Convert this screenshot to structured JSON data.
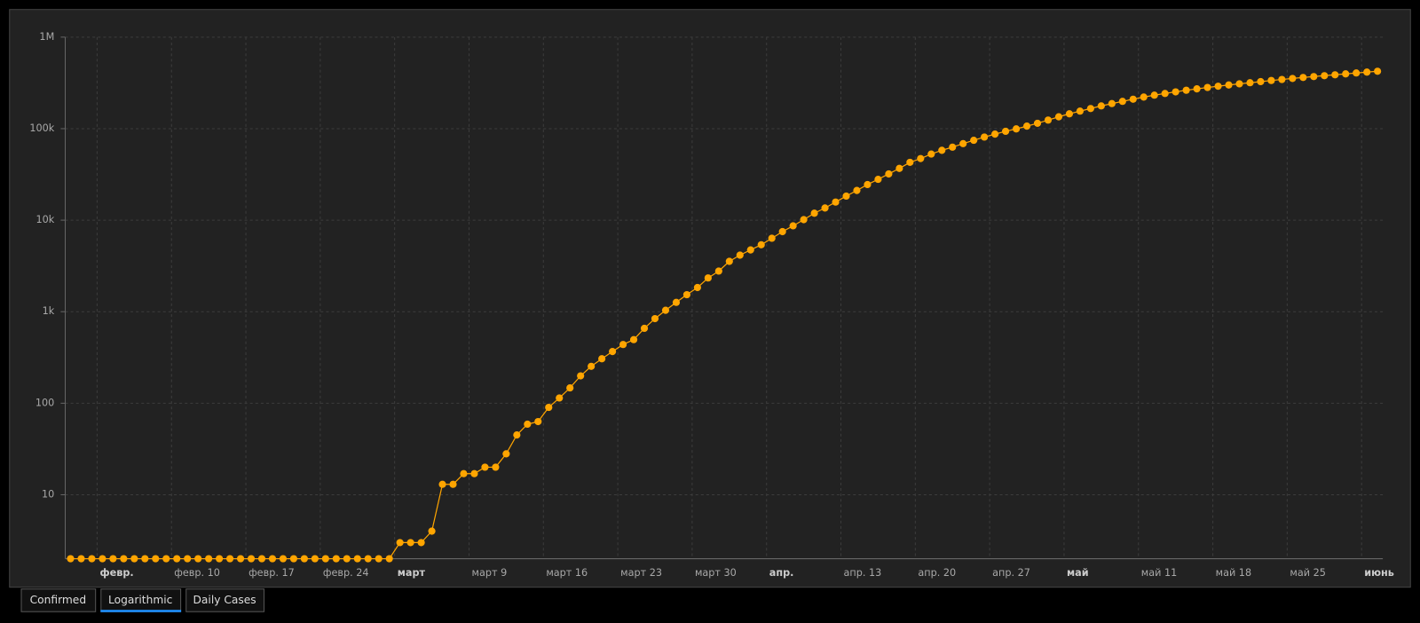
{
  "chart_data": {
    "type": "line",
    "log_scale": true,
    "grid": true,
    "x": [
      "31.01",
      "01.02",
      "02.02",
      "03.02",
      "04.02",
      "05.02",
      "06.02",
      "07.02",
      "08.02",
      "09.02",
      "10.02",
      "11.02",
      "12.02",
      "13.02",
      "14.02",
      "15.02",
      "16.02",
      "17.02",
      "18.02",
      "19.02",
      "20.02",
      "21.02",
      "22.02",
      "23.02",
      "24.02",
      "25.02",
      "26.02",
      "27.02",
      "28.02",
      "29.02",
      "01.03",
      "02.03",
      "03.03",
      "04.03",
      "05.03",
      "06.03",
      "07.03",
      "08.03",
      "09.03",
      "10.03",
      "11.03",
      "12.03",
      "13.03",
      "14.03",
      "15.03",
      "16.03",
      "17.03",
      "18.03",
      "19.03",
      "20.03",
      "21.03",
      "22.03",
      "23.03",
      "24.03",
      "25.03",
      "26.03",
      "27.03",
      "28.03",
      "29.03",
      "30.03",
      "31.03",
      "01.04",
      "02.04",
      "03.04",
      "04.04",
      "05.04",
      "06.04",
      "07.04",
      "08.04",
      "09.04",
      "10.04",
      "11.04",
      "12.04",
      "13.04",
      "14.04",
      "15.04",
      "16.04",
      "17.04",
      "18.04",
      "19.04",
      "20.04",
      "21.04",
      "22.04",
      "23.04",
      "24.04",
      "25.04",
      "26.04",
      "27.04",
      "28.04",
      "29.04",
      "30.04",
      "01.05",
      "02.05",
      "03.05",
      "04.05",
      "05.05",
      "06.05",
      "07.05",
      "08.05",
      "09.05",
      "10.05",
      "11.05",
      "12.05",
      "13.05",
      "14.05",
      "15.05",
      "16.05",
      "17.05",
      "18.05",
      "19.05",
      "20.05",
      "21.05",
      "22.05",
      "23.05",
      "24.05",
      "25.05",
      "26.05",
      "27.05",
      "28.05",
      "29.05",
      "30.05",
      "31.05",
      "01.06",
      "02.06"
    ],
    "series": [
      {
        "color": "#ffa500",
        "values": [
          2,
          2,
          2,
          2,
          2,
          2,
          2,
          2,
          2,
          2,
          2,
          2,
          2,
          2,
          2,
          2,
          2,
          2,
          2,
          2,
          2,
          2,
          2,
          2,
          2,
          2,
          2,
          2,
          2,
          2,
          2,
          3,
          3,
          3,
          4,
          13,
          13,
          17,
          17,
          20,
          20,
          28,
          45,
          59,
          63,
          90,
          114,
          147,
          199,
          253,
          306,
          367,
          438,
          495,
          658,
          840,
          1036,
          1264,
          1534,
          1836,
          2337,
          2777,
          3548,
          4149,
          4731,
          5389,
          6343,
          7497,
          8672,
          10131,
          11917,
          13584,
          15770,
          18328,
          21102,
          24490,
          27938,
          32008,
          36793,
          42853,
          47121,
          52763,
          57999,
          62773,
          68622,
          74588,
          80949,
          87147,
          93558,
          99399,
          106498,
          114431,
          124054,
          134686,
          145268,
          155370,
          165929,
          177160,
          187859,
          198676,
          209688,
          221344,
          232243,
          242271,
          252245,
          262843,
          272043,
          281752,
          290678,
          299941,
          308705,
          317554,
          326448,
          335882,
          344481,
          353427,
          362342,
          370680,
          379051,
          387623,
          396575,
          405843,
          414878,
          423741
        ]
      }
    ],
    "ylim": [
      2,
      1000000
    ],
    "yticks": [
      10,
      100,
      {
        "value": 1000,
        "label": "1k"
      },
      {
        "value": 10000,
        "label": "10k"
      },
      {
        "value": 100000,
        "label": "100k"
      },
      {
        "value": 1000000,
        "label": "1M"
      }
    ],
    "xticks": [
      {
        "value": "03.02",
        "label": "февр."
      },
      {
        "value": "10.02",
        "label": "февр. 10"
      },
      {
        "value": "17.02",
        "label": "февр. 17"
      },
      {
        "value": "24.02",
        "label": "февр. 24"
      },
      {
        "value": "02.03",
        "label": "март"
      },
      {
        "value": "09.03",
        "label": "март 9"
      },
      {
        "value": "16.03",
        "label": "март 16"
      },
      {
        "value": "23.03",
        "label": "март 23"
      },
      {
        "value": "30.03",
        "label": "март 30"
      },
      {
        "value": "06.04",
        "label": "апр."
      },
      {
        "value": "13.04",
        "label": "апр. 13"
      },
      {
        "value": "20.04",
        "label": "апр. 20"
      },
      {
        "value": "27.04",
        "label": "апр. 27"
      },
      {
        "value": "04.05",
        "label": "май"
      },
      {
        "value": "11.05",
        "label": "май 11"
      },
      {
        "value": "18.05",
        "label": "май 18"
      },
      {
        "value": "25.05",
        "label": "май 25"
      },
      {
        "value": "01.06",
        "label": "июнь"
      }
    ]
  },
  "tabs": [
    "Confirmed",
    "Logarithmic",
    "Daily Cases"
  ],
  "active_tab": 1
}
